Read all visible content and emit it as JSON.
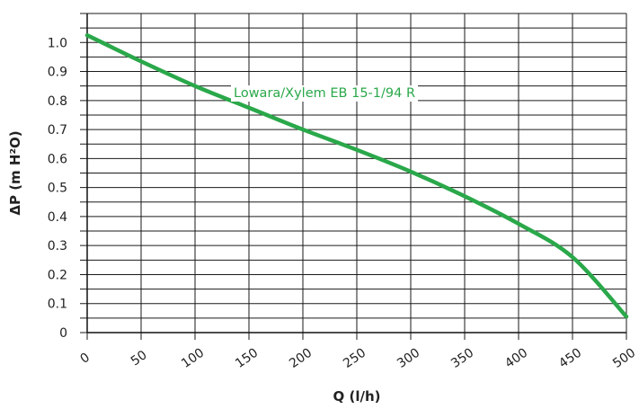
{
  "chart_data": {
    "type": "line",
    "xlabel": "Q (l/h)",
    "ylabel": "ΔP (m H²O)",
    "xlim": [
      0,
      500
    ],
    "ylim": [
      0,
      1.1
    ],
    "x_ticks": [
      "0",
      "50",
      "100",
      "150",
      "200",
      "250",
      "300",
      "350",
      "400",
      "450",
      "500"
    ],
    "y_ticks": [
      "0",
      "0.1",
      "0.2",
      "0.3",
      "0.4",
      "0.5",
      "0.6",
      "0.7",
      "0.8",
      "0.9",
      "1.0"
    ],
    "grid": true,
    "series": [
      {
        "name": "Lowara/Xylem EB 15-1/94 R",
        "color": "#2aa84a",
        "x": [
          0,
          50,
          100,
          150,
          200,
          250,
          300,
          350,
          400,
          450,
          500
        ],
        "y": [
          1.025,
          0.935,
          0.85,
          0.775,
          0.7,
          0.63,
          0.555,
          0.47,
          0.375,
          0.26,
          0.055
        ]
      }
    ]
  }
}
